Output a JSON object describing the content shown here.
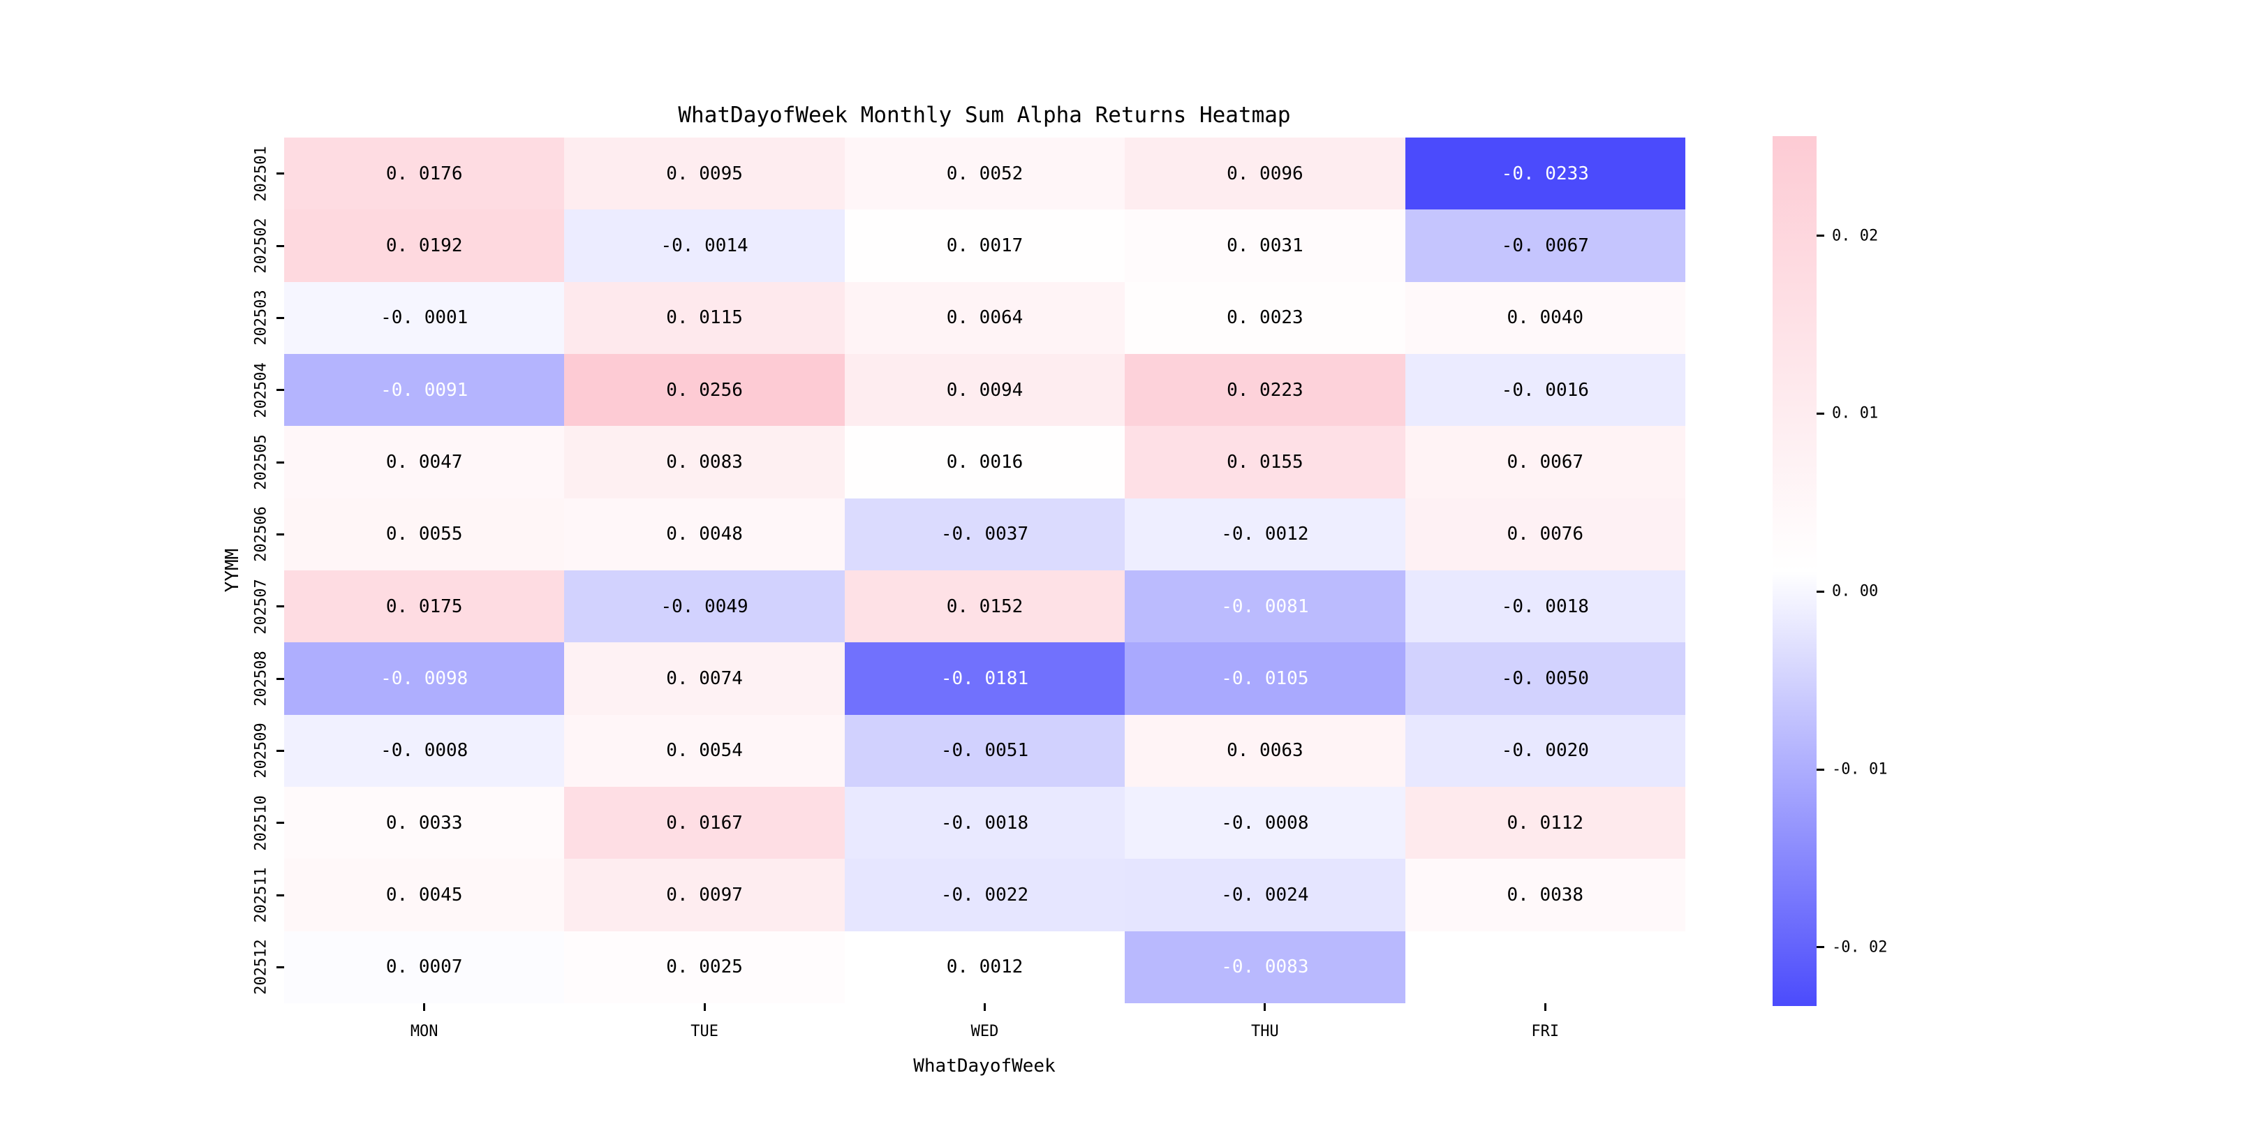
{
  "figure": {
    "background": "#ffffff"
  },
  "chart_data": {
    "type": "heatmap",
    "title": "WhatDayofWeek Monthly Sum Alpha Returns Heatmap",
    "xlabel": "WhatDayofWeek",
    "ylabel": "YYMM",
    "x_categories": [
      "MON",
      "TUE",
      "WED",
      "THU",
      "FRI"
    ],
    "y_categories": [
      "202501",
      "202502",
      "202503",
      "202504",
      "202505",
      "202506",
      "202507",
      "202508",
      "202509",
      "202510",
      "202511",
      "202512"
    ],
    "values": [
      [
        0.0176,
        0.0095,
        0.0052,
        0.0096,
        -0.0233
      ],
      [
        0.0192,
        -0.0014,
        0.0017,
        0.0031,
        -0.0067
      ],
      [
        -0.0001,
        0.0115,
        0.0064,
        0.0023,
        0.004
      ],
      [
        -0.0091,
        0.0256,
        0.0094,
        0.0223,
        -0.0016
      ],
      [
        0.0047,
        0.0083,
        0.0016,
        0.0155,
        0.0067
      ],
      [
        0.0055,
        0.0048,
        -0.0037,
        -0.0012,
        0.0076
      ],
      [
        0.0175,
        -0.0049,
        0.0152,
        -0.0081,
        -0.0018
      ],
      [
        -0.0098,
        0.0074,
        -0.0181,
        -0.0105,
        -0.005
      ],
      [
        -0.0008,
        0.0054,
        -0.0051,
        0.0063,
        -0.002
      ],
      [
        0.0033,
        0.0167,
        -0.0018,
        -0.0008,
        0.0112
      ],
      [
        0.0045,
        0.0097,
        -0.0022,
        -0.0024,
        0.0038
      ],
      [
        0.0007,
        0.0025,
        0.0012,
        -0.0083,
        null
      ]
    ],
    "annotation_decimals": 4,
    "missing_cells": [
      [
        11,
        4
      ]
    ],
    "grid": false,
    "legend_position": "none",
    "colorbar": {
      "position": "right",
      "vmin": -0.0233,
      "vmax": 0.0256,
      "tick_values": [
        0.02,
        0.01,
        0.0,
        -0.01,
        -0.02
      ],
      "tick_labels": [
        "0. 02",
        "0. 01",
        "0. 00",
        "-0. 01",
        "-0. 02"
      ],
      "color_min": "#4b4bfc",
      "color_mid": "#ffffff",
      "color_max": "#fdcbd4"
    },
    "annotation_text_colors": {
      "dark": "#000000",
      "light": "#ffffff",
      "light_text_threshold": -0.0075
    }
  }
}
